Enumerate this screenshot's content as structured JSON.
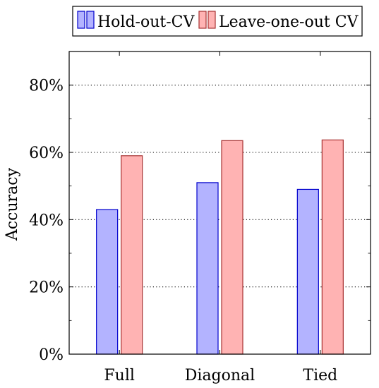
{
  "chart_data": {
    "type": "bar",
    "ylabel": "Accuracy",
    "categories": [
      "Full",
      "Diagonal",
      "Tied"
    ],
    "series": [
      {
        "name": "Hold-out-CV",
        "values": [
          43,
          51,
          49
        ],
        "fill": "#b3b3ff",
        "stroke": "#0000cc"
      },
      {
        "name": "Leave-one-out CV",
        "values": [
          59,
          63.5,
          63.7
        ],
        "fill": "#ffb3b3",
        "stroke": "#a83232"
      }
    ],
    "ylim": [
      0,
      90
    ],
    "yticks": [
      0,
      20,
      40,
      60,
      80
    ],
    "ytick_labels": [
      "0%",
      "20%",
      "40%",
      "60%",
      "80%"
    ],
    "grid": "horizontal-dotted",
    "legend_position": "top"
  }
}
